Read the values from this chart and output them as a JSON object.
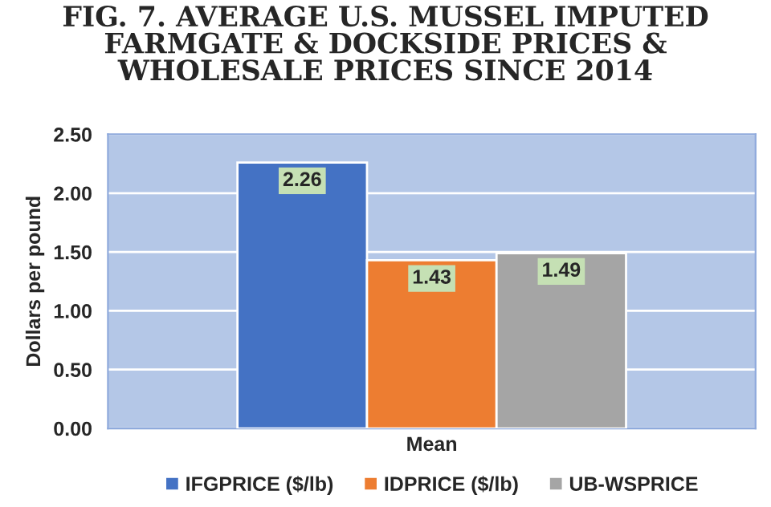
{
  "chart_data": {
    "type": "bar",
    "title": "FIG. 7. AVERAGE U.S. MUSSEL IMPUTED FARMGATE & DOCKSIDE PRICES & WHOLESALE PRICES SINCE 2014",
    "ylabel": "Dollars per pound",
    "categories": [
      "Mean"
    ],
    "series": [
      {
        "name": "IFGPRICE ($/lb)",
        "color": "#4472c4",
        "values": [
          2.26
        ]
      },
      {
        "name": "IDPRICE ($/lb)",
        "color": "#ed7d31",
        "values": [
          1.43
        ]
      },
      {
        "name": "UB-WSPRICE",
        "color": "#a5a5a5",
        "values": [
          1.49
        ]
      }
    ],
    "ylim": [
      0,
      2.5
    ],
    "yticks": [
      {
        "value": 0,
        "label": "0.00"
      },
      {
        "value": 0.5,
        "label": "0.50"
      },
      {
        "value": 1,
        "label": "1.00"
      },
      {
        "value": 1.5,
        "label": "1.50"
      },
      {
        "value": 2,
        "label": "2.00"
      },
      {
        "value": 2.5,
        "label": "2.50"
      }
    ],
    "grid": "y",
    "legend": "bottom",
    "data_labels": true
  }
}
